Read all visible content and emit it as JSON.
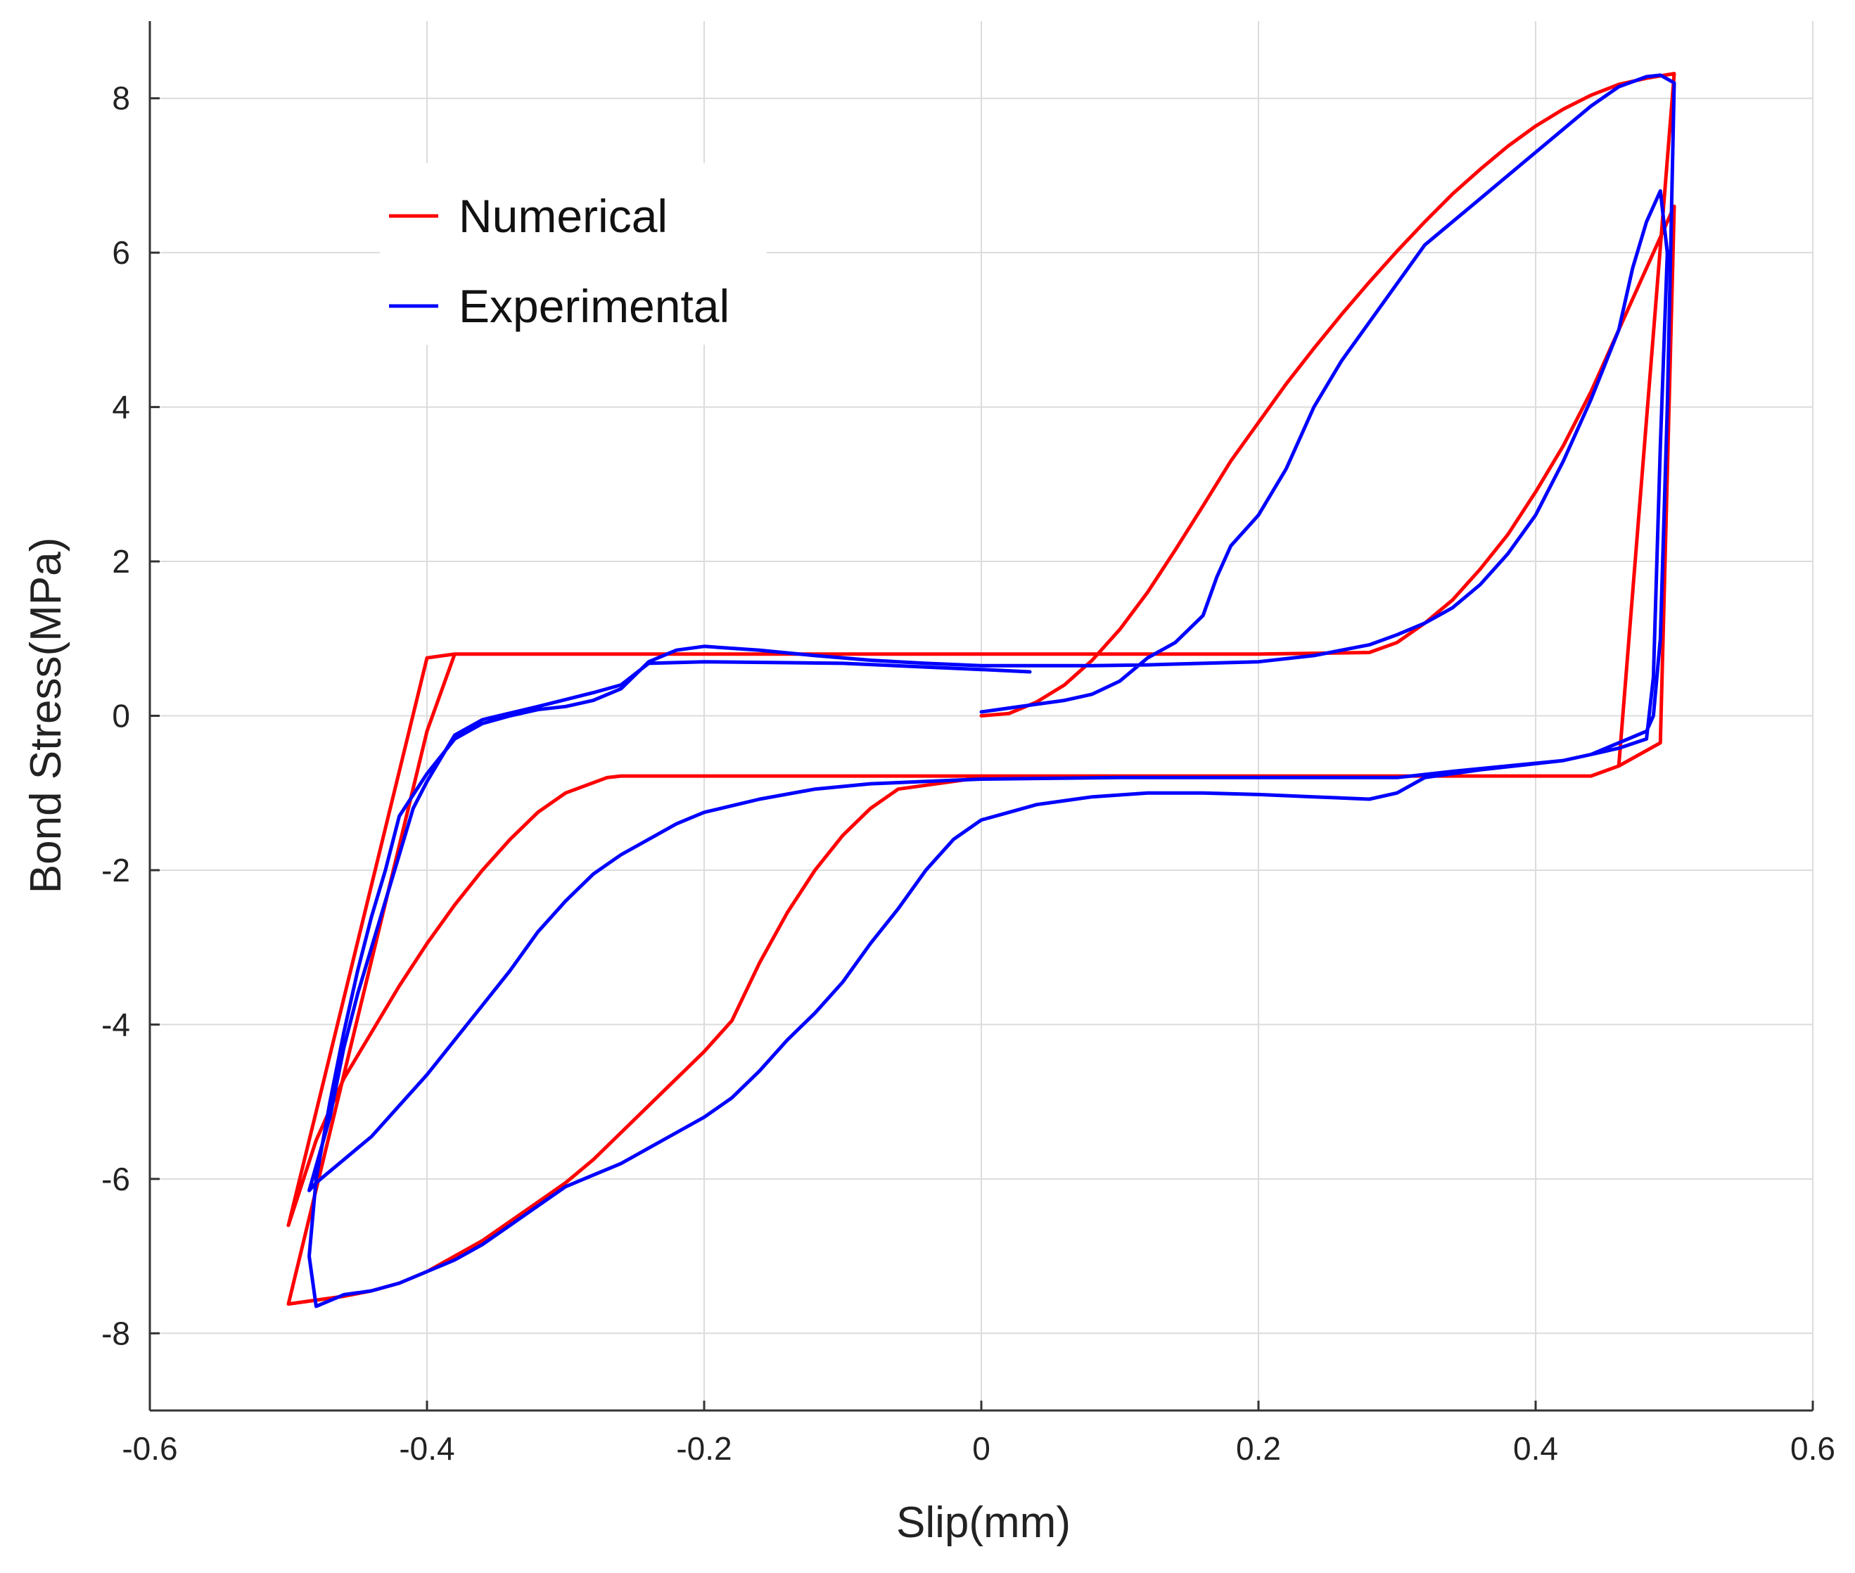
{
  "chart_data": {
    "type": "line",
    "title": "",
    "xlabel": "Slip(mm)",
    "ylabel": "Bond Stress(MPa)",
    "xlim": [
      -0.6,
      0.6
    ],
    "ylim": [
      -9,
      9
    ],
    "x_ticks": [
      -0.6,
      -0.4,
      -0.2,
      0,
      0.2,
      0.4,
      0.6
    ],
    "x_tick_labels": [
      "-0.6",
      "-0.4",
      "-0.2",
      "0",
      "0.2",
      "0.4",
      "0.6"
    ],
    "y_ticks": [
      -8,
      -6,
      -4,
      -2,
      0,
      2,
      4,
      6,
      8
    ],
    "y_tick_labels": [
      "-8",
      "-6",
      "-4",
      "-2",
      "0",
      "2",
      "4",
      "6",
      "8"
    ],
    "grid": true,
    "legend_position": "top-left",
    "series": [
      {
        "name": "Numerical",
        "color": "#ff0000",
        "points": [
          [
            0,
            0
          ],
          [
            0.02,
            0.03
          ],
          [
            0.04,
            0.18
          ],
          [
            0.06,
            0.4
          ],
          [
            0.08,
            0.72
          ],
          [
            0.1,
            1.12
          ],
          [
            0.12,
            1.6
          ],
          [
            0.14,
            2.15
          ],
          [
            0.16,
            2.72
          ],
          [
            0.18,
            3.3
          ],
          [
            0.2,
            3.8
          ],
          [
            0.22,
            4.3
          ],
          [
            0.24,
            4.76
          ],
          [
            0.26,
            5.2
          ],
          [
            0.28,
            5.62
          ],
          [
            0.3,
            6.02
          ],
          [
            0.32,
            6.4
          ],
          [
            0.34,
            6.76
          ],
          [
            0.36,
            7.08
          ],
          [
            0.38,
            7.38
          ],
          [
            0.4,
            7.64
          ],
          [
            0.42,
            7.86
          ],
          [
            0.44,
            8.04
          ],
          [
            0.46,
            8.18
          ],
          [
            0.48,
            8.26
          ],
          [
            0.5,
            8.32
          ],
          [
            0.46,
            -0.65
          ],
          [
            0.44,
            -0.78
          ],
          [
            0.2,
            -0.78
          ],
          [
            0,
            -0.78
          ],
          [
            -0.2,
            -0.78
          ],
          [
            -0.26,
            -0.78
          ],
          [
            -0.27,
            -0.8
          ],
          [
            -0.3,
            -1.0
          ],
          [
            -0.32,
            -1.25
          ],
          [
            -0.34,
            -1.6
          ],
          [
            -0.36,
            -2.0
          ],
          [
            -0.38,
            -2.45
          ],
          [
            -0.4,
            -2.95
          ],
          [
            -0.42,
            -3.5
          ],
          [
            -0.44,
            -4.1
          ],
          [
            -0.46,
            -4.7
          ],
          [
            -0.48,
            -5.5
          ],
          [
            -0.5,
            -6.6
          ],
          [
            -0.4,
            0.75
          ],
          [
            -0.38,
            0.8
          ],
          [
            -0.2,
            0.8
          ],
          [
            0,
            0.8
          ],
          [
            0.2,
            0.8
          ],
          [
            0.28,
            0.82
          ],
          [
            0.3,
            0.95
          ],
          [
            0.32,
            1.2
          ],
          [
            0.34,
            1.5
          ],
          [
            0.36,
            1.9
          ],
          [
            0.38,
            2.35
          ],
          [
            0.4,
            2.9
          ],
          [
            0.42,
            3.5
          ],
          [
            0.44,
            4.2
          ],
          [
            0.46,
            5.0
          ],
          [
            0.48,
            5.8
          ],
          [
            0.5,
            6.6
          ],
          [
            0.49,
            -0.35
          ],
          [
            0.46,
            -0.65
          ],
          [
            0.44,
            -0.78
          ],
          [
            0.2,
            -0.78
          ],
          [
            0,
            -0.8
          ],
          [
            -0.06,
            -0.95
          ],
          [
            -0.08,
            -1.2
          ],
          [
            -0.1,
            -1.55
          ],
          [
            -0.12,
            -2.0
          ],
          [
            -0.14,
            -2.55
          ],
          [
            -0.16,
            -3.2
          ],
          [
            -0.18,
            -3.95
          ],
          [
            -0.2,
            -4.35
          ],
          [
            -0.22,
            -4.7
          ],
          [
            -0.24,
            -5.05
          ],
          [
            -0.26,
            -5.4
          ],
          [
            -0.28,
            -5.75
          ],
          [
            -0.3,
            -6.05
          ],
          [
            -0.32,
            -6.3
          ],
          [
            -0.34,
            -6.55
          ],
          [
            -0.36,
            -6.8
          ],
          [
            -0.38,
            -7.0
          ],
          [
            -0.4,
            -7.2
          ],
          [
            -0.42,
            -7.35
          ],
          [
            -0.44,
            -7.45
          ],
          [
            -0.46,
            -7.52
          ],
          [
            -0.48,
            -7.57
          ],
          [
            -0.5,
            -7.62
          ],
          [
            -0.4,
            -0.2
          ],
          [
            -0.38,
            0.8
          ]
        ]
      },
      {
        "name": "Experimental",
        "color": "#0000ff",
        "points": [
          [
            0,
            0.05
          ],
          [
            0.02,
            0.1
          ],
          [
            0.04,
            0.15
          ],
          [
            0.06,
            0.2
          ],
          [
            0.08,
            0.28
          ],
          [
            0.1,
            0.45
          ],
          [
            0.12,
            0.75
          ],
          [
            0.14,
            0.95
          ],
          [
            0.16,
            1.3
          ],
          [
            0.17,
            1.8
          ],
          [
            0.18,
            2.2
          ],
          [
            0.2,
            2.6
          ],
          [
            0.22,
            3.2
          ],
          [
            0.24,
            4.0
          ],
          [
            0.26,
            4.6
          ],
          [
            0.28,
            5.1
          ],
          [
            0.3,
            5.6
          ],
          [
            0.32,
            6.1
          ],
          [
            0.34,
            6.4
          ],
          [
            0.36,
            6.7
          ],
          [
            0.38,
            7.0
          ],
          [
            0.4,
            7.3
          ],
          [
            0.42,
            7.6
          ],
          [
            0.44,
            7.9
          ],
          [
            0.46,
            8.15
          ],
          [
            0.48,
            8.28
          ],
          [
            0.49,
            8.3
          ],
          [
            0.5,
            8.2
          ],
          [
            0.495,
            4.0
          ],
          [
            0.49,
            1.0
          ],
          [
            0.485,
            0.0
          ],
          [
            0.48,
            -0.2
          ],
          [
            0.46,
            -0.35
          ],
          [
            0.44,
            -0.5
          ],
          [
            0.42,
            -0.58
          ],
          [
            0.4,
            -0.62
          ],
          [
            0.36,
            -0.7
          ],
          [
            0.32,
            -0.8
          ],
          [
            0.3,
            -1.0
          ],
          [
            0.28,
            -1.08
          ],
          [
            0.24,
            -1.05
          ],
          [
            0.2,
            -1.02
          ],
          [
            0.16,
            -1.0
          ],
          [
            0.12,
            -1.0
          ],
          [
            0.08,
            -1.05
          ],
          [
            0.04,
            -1.15
          ],
          [
            0.02,
            -1.25
          ],
          [
            0,
            -1.35
          ],
          [
            -0.02,
            -1.6
          ],
          [
            -0.04,
            -2.0
          ],
          [
            -0.06,
            -2.5
          ],
          [
            -0.08,
            -2.95
          ],
          [
            -0.1,
            -3.45
          ],
          [
            -0.12,
            -3.85
          ],
          [
            -0.14,
            -4.2
          ],
          [
            -0.16,
            -4.6
          ],
          [
            -0.18,
            -4.95
          ],
          [
            -0.2,
            -5.2
          ],
          [
            -0.22,
            -5.4
          ],
          [
            -0.24,
            -5.6
          ],
          [
            -0.26,
            -5.8
          ],
          [
            -0.28,
            -5.95
          ],
          [
            -0.3,
            -6.1
          ],
          [
            -0.32,
            -6.35
          ],
          [
            -0.34,
            -6.6
          ],
          [
            -0.36,
            -6.85
          ],
          [
            -0.38,
            -7.05
          ],
          [
            -0.4,
            -7.2
          ],
          [
            -0.42,
            -7.35
          ],
          [
            -0.44,
            -7.45
          ],
          [
            -0.46,
            -7.5
          ],
          [
            -0.48,
            -7.65
          ],
          [
            -0.485,
            -7.0
          ],
          [
            -0.48,
            -6.0
          ],
          [
            -0.47,
            -5.0
          ],
          [
            -0.46,
            -4.1
          ],
          [
            -0.45,
            -3.3
          ],
          [
            -0.44,
            -2.6
          ],
          [
            -0.43,
            -2.0
          ],
          [
            -0.42,
            -1.3
          ],
          [
            -0.4,
            -0.75
          ],
          [
            -0.38,
            -0.3
          ],
          [
            -0.36,
            -0.1
          ],
          [
            -0.34,
            0.0
          ],
          [
            -0.32,
            0.08
          ],
          [
            -0.3,
            0.12
          ],
          [
            -0.28,
            0.2
          ],
          [
            -0.26,
            0.35
          ],
          [
            -0.24,
            0.7
          ],
          [
            -0.22,
            0.85
          ],
          [
            -0.2,
            0.9
          ],
          [
            -0.16,
            0.85
          ],
          [
            -0.12,
            0.78
          ],
          [
            -0.08,
            0.72
          ],
          [
            -0.04,
            0.68
          ],
          [
            0,
            0.65
          ],
          [
            0.04,
            0.65
          ],
          [
            0.08,
            0.65
          ],
          [
            0.12,
            0.66
          ],
          [
            0.16,
            0.68
          ],
          [
            0.2,
            0.7
          ],
          [
            0.24,
            0.78
          ],
          [
            0.26,
            0.85
          ],
          [
            0.28,
            0.92
          ],
          [
            0.3,
            1.05
          ],
          [
            0.32,
            1.2
          ],
          [
            0.34,
            1.4
          ],
          [
            0.36,
            1.7
          ],
          [
            0.38,
            2.1
          ],
          [
            0.4,
            2.6
          ],
          [
            0.42,
            3.3
          ],
          [
            0.44,
            4.1
          ],
          [
            0.46,
            5.0
          ],
          [
            0.47,
            5.8
          ],
          [
            0.48,
            6.4
          ],
          [
            0.49,
            6.8
          ],
          [
            0.495,
            6.0
          ],
          [
            0.49,
            3.5
          ],
          [
            0.485,
            0.5
          ],
          [
            0.48,
            -0.3
          ],
          [
            0.46,
            -0.42
          ],
          [
            0.44,
            -0.5
          ],
          [
            0.42,
            -0.58
          ],
          [
            0.38,
            -0.65
          ],
          [
            0.34,
            -0.72
          ],
          [
            0.3,
            -0.8
          ],
          [
            0.2,
            -0.8
          ],
          [
            0.1,
            -0.8
          ],
          [
            0,
            -0.82
          ],
          [
            -0.04,
            -0.85
          ],
          [
            -0.08,
            -0.88
          ],
          [
            -0.12,
            -0.95
          ],
          [
            -0.16,
            -1.08
          ],
          [
            -0.2,
            -1.25
          ],
          [
            -0.22,
            -1.4
          ],
          [
            -0.24,
            -1.6
          ],
          [
            -0.26,
            -1.8
          ],
          [
            -0.28,
            -2.05
          ],
          [
            -0.3,
            -2.4
          ],
          [
            -0.32,
            -2.8
          ],
          [
            -0.34,
            -3.3
          ],
          [
            -0.36,
            -3.75
          ],
          [
            -0.38,
            -4.2
          ],
          [
            -0.4,
            -4.65
          ],
          [
            -0.42,
            -5.05
          ],
          [
            -0.44,
            -5.45
          ],
          [
            -0.46,
            -5.75
          ],
          [
            -0.48,
            -6.05
          ],
          [
            -0.485,
            -6.15
          ],
          [
            -0.47,
            -5.2
          ],
          [
            -0.46,
            -4.3
          ],
          [
            -0.45,
            -3.6
          ],
          [
            -0.44,
            -3.0
          ],
          [
            -0.43,
            -2.4
          ],
          [
            -0.42,
            -1.8
          ],
          [
            -0.41,
            -1.2
          ],
          [
            -0.4,
            -0.85
          ],
          [
            -0.39,
            -0.55
          ],
          [
            -0.38,
            -0.25
          ],
          [
            -0.36,
            -0.05
          ],
          [
            -0.32,
            0.12
          ],
          [
            -0.28,
            0.3
          ],
          [
            -0.26,
            0.4
          ],
          [
            -0.24,
            0.68
          ],
          [
            -0.2,
            0.7
          ],
          [
            -0.1,
            0.68
          ],
          [
            0,
            0.6
          ],
          [
            0.035,
            0.57
          ]
        ]
      }
    ]
  }
}
